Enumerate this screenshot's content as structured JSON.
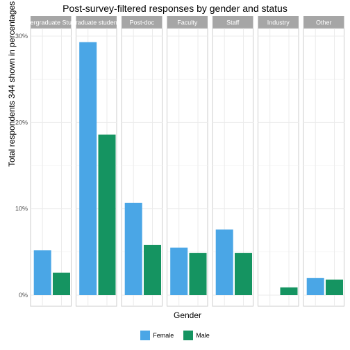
{
  "chart_data": {
    "type": "bar",
    "title": "Post-survey-filtered responses by gender and status",
    "xlabel": "Gender",
    "ylabel": "Total respondents 344 shown in percentages",
    "ylim": [
      0,
      31
    ],
    "y_ticks": [
      0,
      10,
      20,
      30
    ],
    "y_tick_labels": [
      "0%",
      "10%",
      "20%",
      "30%"
    ],
    "grid": true,
    "legend_position": "bottom",
    "series_names": [
      "Female",
      "Male"
    ],
    "series_colors": [
      "#4AA6E6",
      "#159461"
    ],
    "facets": [
      {
        "label": "Undergraduate Student",
        "display_label": "ergraduate Stu",
        "values": [
          5.2,
          2.6
        ]
      },
      {
        "label": "Graduate student",
        "display_label": "raduate studen",
        "values": [
          29.3,
          18.6
        ]
      },
      {
        "label": "Post-doc",
        "display_label": "Post-doc",
        "values": [
          10.7,
          5.8
        ]
      },
      {
        "label": "Faculty",
        "display_label": "Faculty",
        "values": [
          5.5,
          4.9
        ]
      },
      {
        "label": "Staff",
        "display_label": "Staff",
        "values": [
          7.6,
          4.9
        ]
      },
      {
        "label": "Industry",
        "display_label": "Industry",
        "values": [
          0,
          0.9
        ]
      },
      {
        "label": "Other",
        "display_label": "Other",
        "values": [
          2.0,
          1.8
        ]
      }
    ]
  }
}
